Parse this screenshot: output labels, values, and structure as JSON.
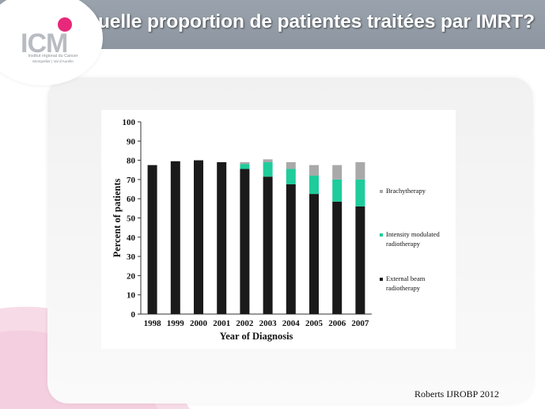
{
  "slide": {
    "title": "Quelle proportion de patientes traitées par IMRT?",
    "citation": "Roberts IJROBP 2012"
  },
  "logo": {
    "mark": "ICM",
    "line1": "Institut régional du Cancer",
    "line2": "Montpellier | Val d'Aurelle"
  },
  "colors": {
    "header": "#8f98a2",
    "external_beam": "#1a1a1a",
    "imrt": "#1fcc9b",
    "brachytherapy": "#a9a9a9",
    "logo_pink": "#e8287a"
  },
  "chart_data": {
    "type": "bar",
    "stacked": true,
    "categories": [
      "1998",
      "1999",
      "2000",
      "2001",
      "2002",
      "2003",
      "2004",
      "2005",
      "2006",
      "2007"
    ],
    "series": [
      {
        "name": "External beam radiotherapy",
        "values": [
          77.5,
          79.5,
          80,
          79,
          75.5,
          71.5,
          67.5,
          62.5,
          58.5,
          56
        ]
      },
      {
        "name": "Intensity modulated radiotherapy",
        "values": [
          0,
          0,
          0,
          0,
          2.5,
          7.5,
          8,
          9.5,
          11.5,
          14
        ]
      },
      {
        "name": "Brachytherapy",
        "values": [
          0,
          0,
          0,
          0,
          1,
          1.5,
          3.5,
          5.5,
          7.5,
          9
        ]
      }
    ],
    "xlabel": "Year of Diagnosis",
    "ylabel": "Percent of patients",
    "ylim": [
      0,
      100
    ],
    "yticks": [
      "0",
      "10",
      "20",
      "30",
      "40",
      "50",
      "60",
      "70",
      "80",
      "90",
      "100"
    ],
    "legend_position": "right",
    "legend": [
      {
        "series": 2,
        "label_lines": [
          "Brachytherapy"
        ]
      },
      {
        "series": 1,
        "label_lines": [
          "Intensity modulated",
          "radiotherapy"
        ]
      },
      {
        "series": 0,
        "label_lines": [
          "External beam",
          "radiotherapy"
        ]
      }
    ],
    "grid": false
  }
}
